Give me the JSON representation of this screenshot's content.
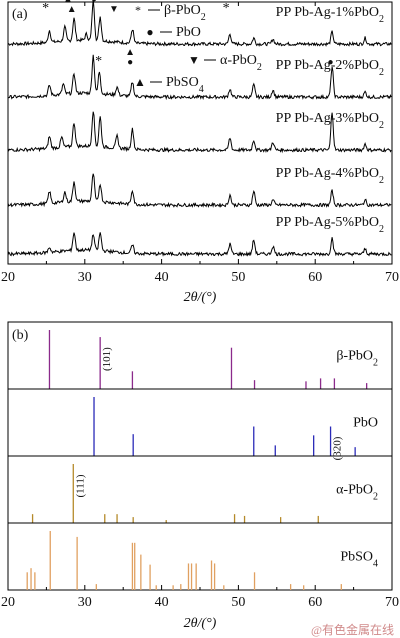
{
  "chart_data": [
    {
      "panel_label": "(a)",
      "type": "line",
      "xlabel": "2θ/(°)",
      "xlim": [
        20,
        70
      ],
      "x_ticks": [
        20,
        30,
        40,
        50,
        60,
        70
      ],
      "legend": {
        "placement": "top",
        "entries": [
          {
            "symbol": "*",
            "label": "β-PbO2"
          },
          {
            "symbol": "●",
            "label": "PbO"
          },
          {
            "symbol": "▼",
            "label": "α-PbO2"
          },
          {
            "symbol": "▲",
            "label": "PbSO4"
          }
        ]
      },
      "series": [
        {
          "name": "PP Pb-Ag-1%PbO2",
          "baseline": 15,
          "peaks": [
            [
              25.4,
              12
            ],
            [
              27.4,
              14
            ],
            [
              28.6,
              22
            ],
            [
              30.2,
              6
            ],
            [
              31.1,
              40
            ],
            [
              32.0,
              24
            ],
            [
              36.2,
              14
            ],
            [
              48.9,
              10
            ],
            [
              52.0,
              6
            ],
            [
              54.5,
              5
            ],
            [
              62.2,
              12
            ],
            [
              66.5,
              6
            ]
          ]
        },
        {
          "name": "PP Pb-Ag-2%PbO2",
          "baseline": 12,
          "peaks": [
            [
              25.4,
              10
            ],
            [
              27.2,
              10
            ],
            [
              28.6,
              20
            ],
            [
              31.1,
              38
            ],
            [
              31.9,
              22
            ],
            [
              34.2,
              8
            ],
            [
              36.2,
              14
            ],
            [
              48.9,
              8
            ],
            [
              52.0,
              12
            ],
            [
              54.5,
              7
            ],
            [
              62.2,
              30
            ],
            [
              66.5,
              5
            ]
          ]
        },
        {
          "name": "PP Pb-Ag-3%PbO2",
          "baseline": 12,
          "peaks": [
            [
              25.4,
              12
            ],
            [
              27.0,
              10
            ],
            [
              28.6,
              24
            ],
            [
              31.1,
              36
            ],
            [
              32.0,
              30
            ],
            [
              34.2,
              12
            ],
            [
              36.2,
              20
            ],
            [
              48.9,
              12
            ],
            [
              52.0,
              10
            ],
            [
              54.5,
              8
            ],
            [
              62.2,
              38
            ],
            [
              66.5,
              6
            ]
          ]
        },
        {
          "name": "PP Pb-Ag-4%PbO2",
          "baseline": 10,
          "peaks": [
            [
              25.4,
              12
            ],
            [
              27.4,
              10
            ],
            [
              28.6,
              20
            ],
            [
              31.1,
              28
            ],
            [
              32.0,
              18
            ],
            [
              36.2,
              14
            ],
            [
              48.9,
              10
            ],
            [
              52.0,
              14
            ],
            [
              54.5,
              5
            ],
            [
              62.2,
              14
            ],
            [
              66.5,
              5
            ]
          ]
        },
        {
          "name": "PP Pb-Ag-5%PbO2",
          "baseline": 10,
          "peaks": [
            [
              25.4,
              5
            ],
            [
              28.6,
              18
            ],
            [
              31.1,
              16
            ],
            [
              32.0,
              18
            ],
            [
              36.2,
              8
            ],
            [
              48.9,
              10
            ],
            [
              52.0,
              14
            ],
            [
              54.5,
              8
            ],
            [
              62.2,
              16
            ],
            [
              66.5,
              5
            ]
          ]
        }
      ],
      "annotations": [
        {
          "symbol": "*",
          "x": 24.9,
          "trace": 1
        },
        {
          "symbol": "▲",
          "x": 28.3,
          "trace": 1
        },
        {
          "symbol": "▲",
          "x": 27.8,
          "trace": 1,
          "level": 2
        },
        {
          "symbol": "●",
          "x": 31.2,
          "trace": 1,
          "level": 2
        },
        {
          "symbol": "▼",
          "x": 33.8,
          "trace": 1
        },
        {
          "symbol": "*",
          "x": 48.4,
          "trace": 1
        },
        {
          "symbol": "*",
          "x": 52.0,
          "trace": 1,
          "level": 2
        },
        {
          "symbol": "*",
          "x": 31.8,
          "trace": 2
        },
        {
          "symbol": "▲",
          "x": 35.9,
          "trace": 2,
          "level": 2
        },
        {
          "symbol": "●",
          "x": 35.9,
          "trace": 2
        },
        {
          "symbol": "●",
          "x": 62.0,
          "trace": 2
        }
      ]
    },
    {
      "panel_label": "(b)",
      "type": "bar",
      "xlabel": "2θ/(°)",
      "xlim": [
        20,
        70
      ],
      "x_ticks": [
        20,
        30,
        40,
        50,
        60,
        70
      ],
      "series": [
        {
          "name": "β-PbO2",
          "color": "#8b2a8b",
          "peaks": [
            [
              25.4,
              100
            ],
            [
              32.0,
              88
            ],
            [
              36.2,
              30
            ],
            [
              49.1,
              70
            ],
            [
              52.1,
              15
            ],
            [
              58.8,
              13
            ],
            [
              60.7,
              18
            ],
            [
              62.5,
              18
            ],
            [
              66.7,
              10
            ]
          ],
          "labels": [
            {
              "text": "(101)",
              "x": 32.0
            }
          ]
        },
        {
          "name": "PbO",
          "color": "#2a2ab8",
          "peaks": [
            [
              31.2,
              100
            ],
            [
              36.3,
              37
            ],
            [
              52.0,
              50
            ],
            [
              54.8,
              18
            ],
            [
              59.8,
              35
            ],
            [
              62.0,
              50
            ],
            [
              65.2,
              15
            ]
          ],
          "labels": [
            {
              "text": "(320)",
              "x": 62.0
            }
          ]
        },
        {
          "name": "α-PbO2",
          "color": "#b58a2a",
          "peaks": [
            [
              23.2,
              15
            ],
            [
              28.5,
              100
            ],
            [
              32.6,
              15
            ],
            [
              34.2,
              15
            ],
            [
              36.3,
              10
            ],
            [
              40.6,
              5
            ],
            [
              49.5,
              15
            ],
            [
              50.8,
              12
            ],
            [
              55.5,
              10
            ],
            [
              60.4,
              12
            ]
          ],
          "labels": [
            {
              "text": "(111)",
              "x": 28.5
            }
          ]
        },
        {
          "name": "PbSO4",
          "color": "#e0a060",
          "peaks": [
            [
              22.5,
              30
            ],
            [
              23.0,
              37
            ],
            [
              23.5,
              30
            ],
            [
              25.5,
              100
            ],
            [
              29.0,
              90
            ],
            [
              31.5,
              10
            ],
            [
              36.2,
              80
            ],
            [
              36.5,
              80
            ],
            [
              37.3,
              60
            ],
            [
              38.5,
              43
            ],
            [
              39.3,
              8
            ],
            [
              41.5,
              8
            ],
            [
              42.5,
              10
            ],
            [
              43.5,
              45
            ],
            [
              43.9,
              45
            ],
            [
              44.5,
              45
            ],
            [
              46.5,
              50
            ],
            [
              46.9,
              45
            ],
            [
              48.1,
              8
            ],
            [
              52.1,
              30
            ],
            [
              56.8,
              10
            ],
            [
              58.5,
              8
            ],
            [
              63.4,
              10
            ]
          ],
          "labels": []
        }
      ]
    }
  ],
  "watermark": "@有色金属在线"
}
